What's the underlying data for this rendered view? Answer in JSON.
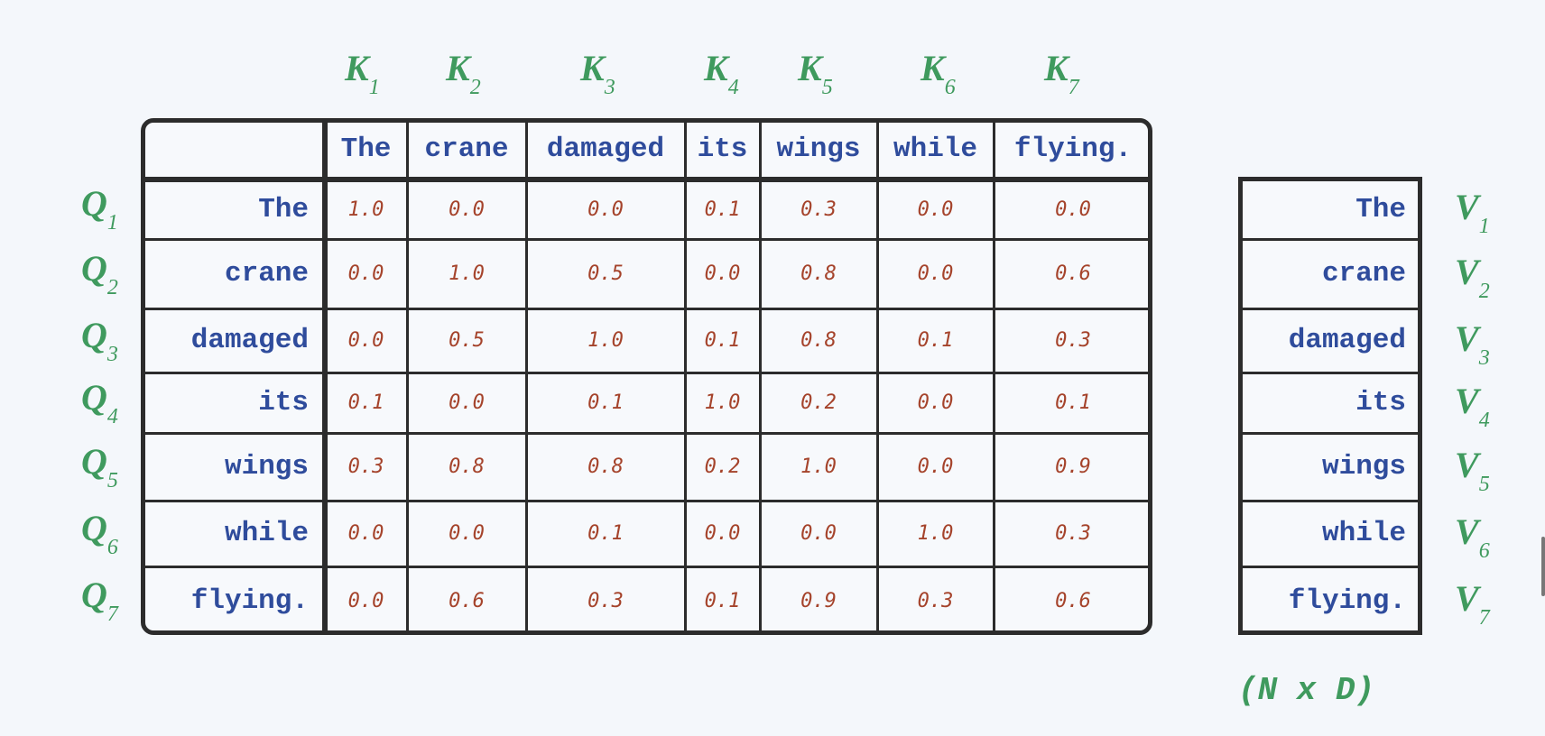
{
  "tokens": [
    "The",
    "crane",
    "damaged",
    "its",
    "wings",
    "while",
    "flying."
  ],
  "k_labels": [
    {
      "l": "K",
      "s": "1"
    },
    {
      "l": "K",
      "s": "2"
    },
    {
      "l": "K",
      "s": "3"
    },
    {
      "l": "K",
      "s": "4"
    },
    {
      "l": "K",
      "s": "5"
    },
    {
      "l": "K",
      "s": "6"
    },
    {
      "l": "K",
      "s": "7"
    }
  ],
  "q_labels": [
    {
      "l": "Q",
      "s": "1"
    },
    {
      "l": "Q",
      "s": "2"
    },
    {
      "l": "Q",
      "s": "3"
    },
    {
      "l": "Q",
      "s": "4"
    },
    {
      "l": "Q",
      "s": "5"
    },
    {
      "l": "Q",
      "s": "6"
    },
    {
      "l": "Q",
      "s": "7"
    }
  ],
  "v_labels": [
    {
      "l": "V",
      "s": "1"
    },
    {
      "l": "V",
      "s": "2"
    },
    {
      "l": "V",
      "s": "3"
    },
    {
      "l": "V",
      "s": "4"
    },
    {
      "l": "V",
      "s": "5"
    },
    {
      "l": "V",
      "s": "6"
    },
    {
      "l": "V",
      "s": "7"
    }
  ],
  "matrix": [
    [
      "1.0",
      "0.0",
      "0.0",
      "0.1",
      "0.3",
      "0.0",
      "0.0"
    ],
    [
      "0.0",
      "1.0",
      "0.5",
      "0.0",
      "0.8",
      "0.0",
      "0.6"
    ],
    [
      "0.0",
      "0.5",
      "1.0",
      "0.1",
      "0.8",
      "0.1",
      "0.3"
    ],
    [
      "0.1",
      "0.0",
      "0.1",
      "1.0",
      "0.2",
      "0.0",
      "0.1"
    ],
    [
      "0.3",
      "0.8",
      "0.8",
      "0.2",
      "1.0",
      "0.0",
      "0.9"
    ],
    [
      "0.0",
      "0.0",
      "0.1",
      "0.0",
      "0.0",
      "1.0",
      "0.3"
    ],
    [
      "0.0",
      "0.6",
      "0.3",
      "0.1",
      "0.9",
      "0.3",
      "0.6"
    ]
  ],
  "shape_label": "(N x D)",
  "colors": {
    "token": "#2f4c9c",
    "value": "#a5432b",
    "label": "#3f9a5e",
    "border": "#2c2c2c",
    "background": "#f4f7fb"
  }
}
